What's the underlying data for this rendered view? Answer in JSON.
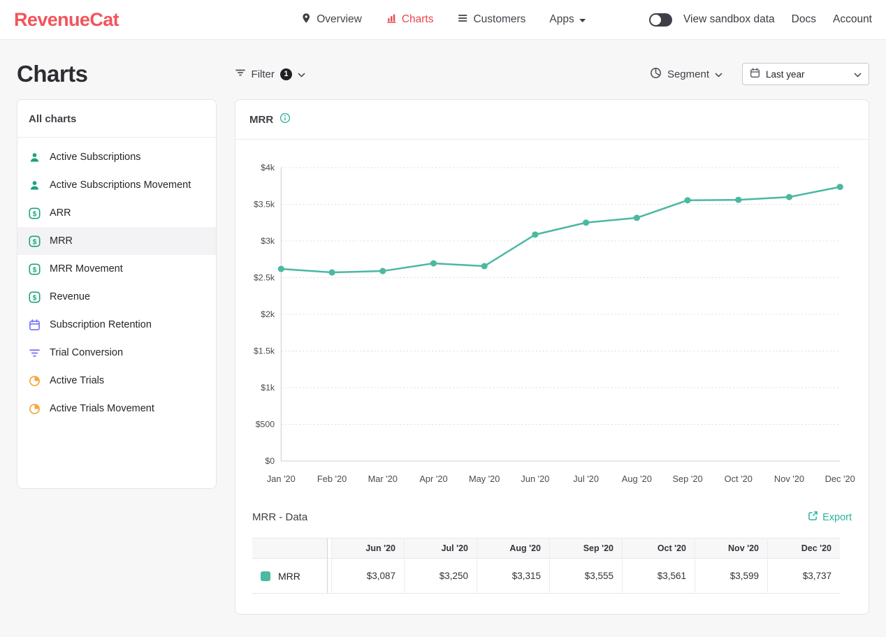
{
  "navbar": {
    "brand": "RevenueCat",
    "items": [
      {
        "label": "Overview",
        "icon": "pin-icon",
        "active": false
      },
      {
        "label": "Charts",
        "icon": "bar-chart-icon",
        "active": true
      },
      {
        "label": "Customers",
        "icon": "list-icon",
        "active": false
      },
      {
        "label": "Apps",
        "icon": "caret-down-icon",
        "active": false
      }
    ],
    "sandbox_label": "View sandbox data",
    "docs_label": "Docs",
    "account_label": "Account"
  },
  "page": {
    "title": "Charts",
    "filter": {
      "label": "Filter",
      "count": "1"
    },
    "segment_label": "Segment",
    "date_range_value": "Last year"
  },
  "sidebar": {
    "header": "All charts",
    "items": [
      {
        "label": "Active Subscriptions",
        "icon": "person-icon",
        "selected": false
      },
      {
        "label": "Active Subscriptions Movement",
        "icon": "person-icon",
        "selected": false
      },
      {
        "label": "ARR",
        "icon": "dollar-icon",
        "selected": false
      },
      {
        "label": "MRR",
        "icon": "dollar-icon",
        "selected": true
      },
      {
        "label": "MRR Movement",
        "icon": "dollar-icon",
        "selected": false
      },
      {
        "label": "Revenue",
        "icon": "dollar-icon",
        "selected": false
      },
      {
        "label": "Subscription Retention",
        "icon": "calendar-icon",
        "selected": false
      },
      {
        "label": "Trial Conversion",
        "icon": "funnel-icon",
        "selected": false
      },
      {
        "label": "Active Trials",
        "icon": "trial-pie-icon",
        "selected": false
      },
      {
        "label": "Active Trials Movement",
        "icon": "trial-pie-icon",
        "selected": false
      }
    ]
  },
  "chart_card": {
    "title": "MRR"
  },
  "chart_data": {
    "type": "line",
    "title": "MRR",
    "x": [
      "Jan '20",
      "Feb '20",
      "Mar '20",
      "Apr '20",
      "May '20",
      "Jun '20",
      "Jul '20",
      "Aug '20",
      "Sep '20",
      "Oct '20",
      "Nov '20",
      "Dec '20"
    ],
    "series": [
      {
        "name": "MRR",
        "color": "#4bb8a2",
        "values": [
          2619,
          2571,
          2590,
          2695,
          2657,
          3087,
          3250,
          3315,
          3555,
          3561,
          3599,
          3737
        ]
      }
    ],
    "ylim": [
      0,
      4000
    ],
    "yticks": [
      0,
      500,
      1000,
      1500,
      2000,
      2500,
      3000,
      3500,
      4000
    ],
    "ytick_labels": [
      "$0",
      "$500",
      "$1k",
      "$1.5k",
      "$2k",
      "$2.5k",
      "$3k",
      "$3.5k",
      "$4k"
    ],
    "grid": "horizontal-dotted",
    "legend_position": "none"
  },
  "data_table": {
    "title": "MRR - Data",
    "export_label": "Export",
    "columns": [
      "Jun '20",
      "Jul '20",
      "Aug '20",
      "Sep '20",
      "Oct '20",
      "Nov '20",
      "Dec '20"
    ],
    "rows": [
      {
        "label": "MRR",
        "color": "#4bb8a2",
        "values": [
          "$3,087",
          "$3,250",
          "$3,315",
          "$3,555",
          "$3,561",
          "$3,599",
          "$3,737"
        ]
      }
    ]
  },
  "colors": {
    "brand_red": "#f2545b",
    "active_nav_red": "#e8474e",
    "accent_teal": "#4bb8a2",
    "teal_icon": "#1aa27c",
    "blue_icon": "#6e6ef7",
    "purple_icon": "#7d7df5",
    "orange_icon": "#f5a83c",
    "export_teal": "#28b59e"
  }
}
